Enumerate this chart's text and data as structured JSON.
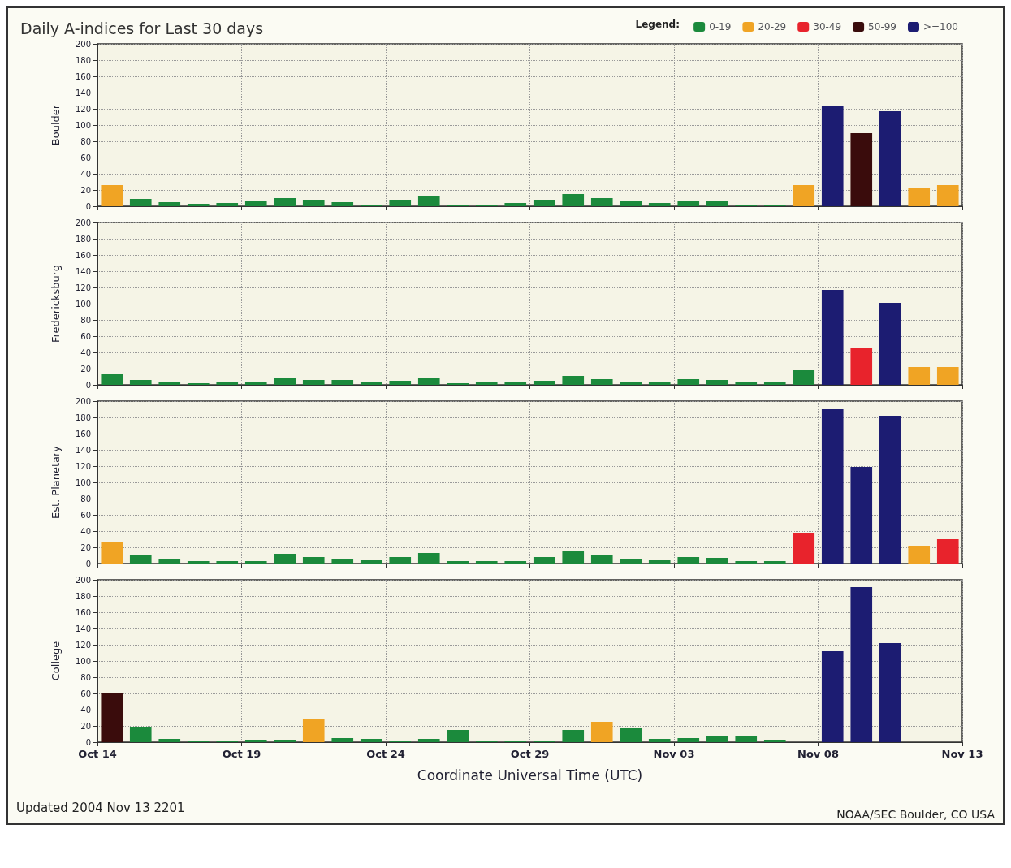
{
  "chart_data": [
    {
      "type": "bar",
      "title": "Daily A-indices for Last 30 days",
      "legend_title": "Legend:",
      "ylabel": "Boulder",
      "stacked": true,
      "legend": "top right",
      "grid": true,
      "tick_labels": "y",
      "x": [
        "2004-10-14T12:00",
        "2004-10-15T12:00",
        "2004-10-16T12:00",
        "2004-10-17T12:00",
        "2004-10-18T12:00",
        "2004-10-19T12:00",
        "2004-10-20T12:00",
        "2004-10-21T12:00",
        "2004-10-22T12:00",
        "2004-10-23T12:00",
        "2004-10-24T12:00",
        "2004-10-25T12:00",
        "2004-10-26T12:00",
        "2004-10-27T12:00",
        "2004-10-28T12:00",
        "2004-10-29T12:00",
        "2004-10-30T12:00",
        "2004-10-31T12:00",
        "2004-11-01T12:00",
        "2004-11-02T12:00",
        "2004-11-03T12:00",
        "2004-11-04T12:00",
        "2004-11-05T12:00",
        "2004-11-06T12:00",
        "2004-11-07T12:00",
        "2004-11-08T12:00",
        "2004-11-09T12:00",
        "2004-11-10T12:00",
        "2004-11-11T12:00",
        "2004-11-12T12:00"
      ],
      "xlim": [
        "2004-10-14",
        "2004-11-13"
      ],
      "xticks": [
        {
          "value": "2004-10-14",
          "label": null
        },
        {
          "value": "2004-10-19",
          "label": null
        },
        {
          "value": "2004-10-24",
          "label": null
        },
        {
          "value": "2004-10-29",
          "label": null
        },
        {
          "value": "2004-11-03",
          "label": null
        },
        {
          "value": "2004-11-08",
          "label": null
        },
        {
          "value": "2004-11-13",
          "label": null
        }
      ],
      "ylim": [
        0,
        200
      ],
      "yticks": [
        0,
        20,
        40,
        60,
        80,
        100,
        120,
        140,
        160,
        180,
        200
      ],
      "series": [
        {
          "name": "0-19",
          "color": "#1b8a3c",
          "values": [
            null,
            9,
            5,
            3,
            4,
            6,
            10,
            8,
            5,
            2,
            8,
            12,
            2,
            2,
            4,
            8,
            15,
            10,
            6,
            4,
            7,
            7,
            2,
            2,
            null,
            null,
            null,
            null,
            null,
            null
          ]
        },
        {
          "name": "20-29",
          "color": "#f0a424",
          "values": [
            26,
            null,
            null,
            null,
            null,
            null,
            null,
            null,
            null,
            null,
            null,
            null,
            null,
            null,
            null,
            null,
            null,
            null,
            null,
            null,
            null,
            null,
            null,
            null,
            26,
            null,
            null,
            null,
            22,
            26
          ]
        },
        {
          "name": "30-49",
          "color": "#e8232c",
          "values": [
            null,
            null,
            null,
            null,
            null,
            null,
            null,
            null,
            null,
            null,
            null,
            null,
            null,
            null,
            null,
            null,
            null,
            null,
            null,
            null,
            null,
            null,
            null,
            null,
            null,
            null,
            null,
            null,
            null,
            null
          ]
        },
        {
          "name": "50-99",
          "color": "#3a0c0c",
          "values": [
            null,
            null,
            null,
            null,
            null,
            null,
            null,
            null,
            null,
            null,
            null,
            null,
            null,
            null,
            null,
            null,
            null,
            null,
            null,
            null,
            null,
            null,
            null,
            null,
            null,
            null,
            90,
            null,
            null,
            null
          ]
        },
        {
          "name": ">=100",
          "color": "#1c1c72",
          "values": [
            null,
            null,
            null,
            null,
            null,
            null,
            null,
            null,
            null,
            null,
            null,
            null,
            null,
            null,
            null,
            null,
            null,
            null,
            null,
            null,
            null,
            null,
            null,
            null,
            null,
            124,
            null,
            117,
            null,
            null
          ]
        }
      ]
    },
    {
      "type": "bar",
      "ylabel": "Fredericksburg",
      "stacked": true,
      "grid": true,
      "tick_labels": "y",
      "x": [
        "2004-10-14T12:00",
        "2004-10-15T12:00",
        "2004-10-16T12:00",
        "2004-10-17T12:00",
        "2004-10-18T12:00",
        "2004-10-19T12:00",
        "2004-10-20T12:00",
        "2004-10-21T12:00",
        "2004-10-22T12:00",
        "2004-10-23T12:00",
        "2004-10-24T12:00",
        "2004-10-25T12:00",
        "2004-10-26T12:00",
        "2004-10-27T12:00",
        "2004-10-28T12:00",
        "2004-10-29T12:00",
        "2004-10-30T12:00",
        "2004-10-31T12:00",
        "2004-11-01T12:00",
        "2004-11-02T12:00",
        "2004-11-03T12:00",
        "2004-11-04T12:00",
        "2004-11-05T12:00",
        "2004-11-06T12:00",
        "2004-11-07T12:00",
        "2004-11-08T12:00",
        "2004-11-09T12:00",
        "2004-11-10T12:00",
        "2004-11-11T12:00",
        "2004-11-12T12:00"
      ],
      "xlim": [
        "2004-10-14",
        "2004-11-13"
      ],
      "xticks": [
        {
          "value": "2004-10-14",
          "label": null
        },
        {
          "value": "2004-10-19",
          "label": null
        },
        {
          "value": "2004-10-24",
          "label": null
        },
        {
          "value": "2004-10-29",
          "label": null
        },
        {
          "value": "2004-11-03",
          "label": null
        },
        {
          "value": "2004-11-08",
          "label": null
        },
        {
          "value": "2004-11-13",
          "label": null
        }
      ],
      "ylim": [
        0,
        200
      ],
      "yticks": [
        0,
        20,
        40,
        60,
        80,
        100,
        120,
        140,
        160,
        180,
        200
      ],
      "series": [
        {
          "color": "#1b8a3c",
          "values": [
            14,
            6,
            4,
            2,
            4,
            4,
            9,
            6,
            6,
            3,
            5,
            9,
            2,
            3,
            3,
            5,
            11,
            7,
            4,
            3,
            7,
            6,
            3,
            3,
            18,
            null,
            null,
            null,
            null,
            null
          ]
        },
        {
          "color": "#f0a424",
          "values": [
            null,
            null,
            null,
            null,
            null,
            null,
            null,
            null,
            null,
            null,
            null,
            null,
            null,
            null,
            null,
            null,
            null,
            null,
            null,
            null,
            null,
            null,
            null,
            null,
            null,
            null,
            null,
            null,
            22,
            22
          ]
        },
        {
          "color": "#e8232c",
          "values": [
            null,
            null,
            null,
            null,
            null,
            null,
            null,
            null,
            null,
            null,
            null,
            null,
            null,
            null,
            null,
            null,
            null,
            null,
            null,
            null,
            null,
            null,
            null,
            null,
            null,
            null,
            46,
            null,
            null,
            null
          ]
        },
        {
          "color": "#1c1c72",
          "values": [
            null,
            null,
            null,
            null,
            null,
            null,
            null,
            null,
            null,
            null,
            null,
            null,
            null,
            null,
            null,
            null,
            null,
            null,
            null,
            null,
            null,
            null,
            null,
            null,
            null,
            117,
            null,
            101,
            null,
            null
          ]
        }
      ]
    },
    {
      "type": "bar",
      "ylabel": "Est. Planetary",
      "stacked": true,
      "grid": true,
      "tick_labels": "y",
      "x": [
        "2004-10-14T12:00",
        "2004-10-15T12:00",
        "2004-10-16T12:00",
        "2004-10-17T12:00",
        "2004-10-18T12:00",
        "2004-10-19T12:00",
        "2004-10-20T12:00",
        "2004-10-21T12:00",
        "2004-10-22T12:00",
        "2004-10-23T12:00",
        "2004-10-24T12:00",
        "2004-10-25T12:00",
        "2004-10-26T12:00",
        "2004-10-27T12:00",
        "2004-10-28T12:00",
        "2004-10-29T12:00",
        "2004-10-30T12:00",
        "2004-10-31T12:00",
        "2004-11-01T12:00",
        "2004-11-02T12:00",
        "2004-11-03T12:00",
        "2004-11-04T12:00",
        "2004-11-05T12:00",
        "2004-11-06T12:00",
        "2004-11-07T12:00",
        "2004-11-08T12:00",
        "2004-11-09T12:00",
        "2004-11-10T12:00",
        "2004-11-11T12:00",
        "2004-11-12T12:00"
      ],
      "xlim": [
        "2004-10-14",
        "2004-11-13"
      ],
      "xticks": [
        {
          "value": "2004-10-14",
          "label": null
        },
        {
          "value": "2004-10-19",
          "label": null
        },
        {
          "value": "2004-10-24",
          "label": null
        },
        {
          "value": "2004-10-29",
          "label": null
        },
        {
          "value": "2004-11-03",
          "label": null
        },
        {
          "value": "2004-11-08",
          "label": null
        },
        {
          "value": "2004-11-13",
          "label": null
        }
      ],
      "ylim": [
        0,
        200
      ],
      "yticks": [
        0,
        20,
        40,
        60,
        80,
        100,
        120,
        140,
        160,
        180,
        200
      ],
      "series": [
        {
          "color": "#1b8a3c",
          "values": [
            null,
            10,
            5,
            3,
            3,
            3,
            12,
            8,
            6,
            4,
            8,
            13,
            3,
            3,
            3,
            8,
            16,
            10,
            5,
            4,
            8,
            7,
            3,
            3,
            null,
            null,
            null,
            null,
            null,
            null
          ]
        },
        {
          "color": "#f0a424",
          "values": [
            26,
            null,
            null,
            null,
            null,
            null,
            null,
            null,
            null,
            null,
            null,
            null,
            null,
            null,
            null,
            null,
            null,
            null,
            null,
            null,
            null,
            null,
            null,
            null,
            null,
            null,
            null,
            null,
            22,
            null
          ]
        },
        {
          "color": "#e8232c",
          "values": [
            null,
            null,
            null,
            null,
            null,
            null,
            null,
            null,
            null,
            null,
            null,
            null,
            null,
            null,
            null,
            null,
            null,
            null,
            null,
            null,
            null,
            null,
            null,
            null,
            38,
            null,
            null,
            null,
            null,
            30
          ]
        },
        {
          "color": "#1c1c72",
          "values": [
            null,
            null,
            null,
            null,
            null,
            null,
            null,
            null,
            null,
            null,
            null,
            null,
            null,
            null,
            null,
            null,
            null,
            null,
            null,
            null,
            null,
            null,
            null,
            null,
            null,
            190,
            119,
            182,
            null,
            null
          ]
        }
      ]
    },
    {
      "type": "bar",
      "ylabel": "College",
      "xlabel": "Coordinate Universal Time (UTC)",
      "stacked": true,
      "grid": true,
      "annotations": [
        "Updated 2004 Nov 13 2201",
        "NOAA/SEC Boulder, CO USA"
      ],
      "x": [
        "2004-10-14T12:00",
        "2004-10-15T12:00",
        "2004-10-16T12:00",
        "2004-10-17T12:00",
        "2004-10-18T12:00",
        "2004-10-19T12:00",
        "2004-10-20T12:00",
        "2004-10-21T12:00",
        "2004-10-22T12:00",
        "2004-10-23T12:00",
        "2004-10-24T12:00",
        "2004-10-25T12:00",
        "2004-10-26T12:00",
        "2004-10-27T12:00",
        "2004-10-28T12:00",
        "2004-10-29T12:00",
        "2004-10-30T12:00",
        "2004-10-31T12:00",
        "2004-11-01T12:00",
        "2004-11-02T12:00",
        "2004-11-03T12:00",
        "2004-11-04T12:00",
        "2004-11-05T12:00",
        "2004-11-06T12:00",
        "2004-11-07T12:00",
        "2004-11-08T12:00",
        "2004-11-09T12:00",
        "2004-11-10T12:00"
      ],
      "xlim": [
        "2004-10-14",
        "2004-11-13"
      ],
      "xticks": [
        {
          "value": "2004-10-14",
          "label": "Oct 14"
        },
        {
          "value": "2004-10-19",
          "label": "Oct 19"
        },
        {
          "value": "2004-10-24",
          "label": "Oct 24"
        },
        {
          "value": "2004-10-29",
          "label": "Oct 29"
        },
        {
          "value": "2004-11-03",
          "label": "Nov 03"
        },
        {
          "value": "2004-11-08",
          "label": "Nov 08"
        },
        {
          "value": "2004-11-13",
          "label": "Nov 13"
        }
      ],
      "ylim": [
        0,
        200
      ],
      "yticks": [
        0,
        20,
        40,
        60,
        80,
        100,
        120,
        140,
        160,
        180,
        200
      ],
      "series": [
        {
          "color": "#1b8a3c",
          "values": [
            null,
            19,
            4,
            1,
            2,
            3,
            3,
            null,
            5,
            4,
            2,
            4,
            15,
            1,
            2,
            2,
            15,
            null,
            17,
            4,
            5,
            8,
            8,
            3,
            null,
            null,
            null,
            null
          ]
        },
        {
          "color": "#f0a424",
          "values": [
            null,
            null,
            null,
            null,
            null,
            null,
            null,
            29,
            null,
            null,
            null,
            null,
            null,
            null,
            null,
            null,
            null,
            25,
            null,
            null,
            null,
            null,
            null,
            null,
            null,
            null,
            null,
            null
          ]
        },
        {
          "color": "#3a0c0c",
          "values": [
            60,
            null,
            null,
            null,
            null,
            null,
            null,
            null,
            null,
            null,
            null,
            null,
            null,
            null,
            null,
            null,
            null,
            null,
            null,
            null,
            null,
            null,
            null,
            null,
            null,
            null,
            null,
            null
          ]
        },
        {
          "color": "#1c1c72",
          "values": [
            null,
            null,
            null,
            null,
            null,
            null,
            null,
            null,
            null,
            null,
            null,
            null,
            null,
            null,
            null,
            null,
            null,
            null,
            null,
            null,
            null,
            null,
            null,
            null,
            null,
            112,
            191,
            122
          ]
        }
      ]
    }
  ]
}
